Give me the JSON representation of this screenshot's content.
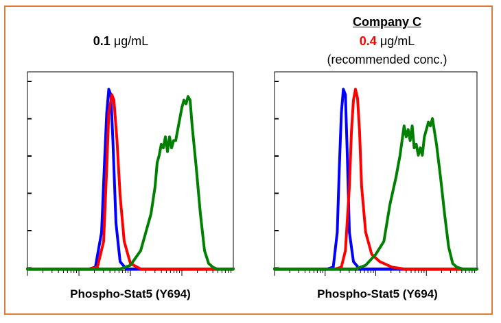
{
  "colors": {
    "frame": "#e07b39",
    "isotype": "#0000ff",
    "stained": "#ff0000",
    "positive": "#008000",
    "highlight": "#ff0000"
  },
  "panels": [
    {
      "conc_value": "0.1",
      "conc_unit": "μg/mL",
      "conc_value_color": "#000000",
      "company": "",
      "note": "",
      "xlabel": "Phospho-Stat5 (Y694)"
    },
    {
      "conc_value": "0.4",
      "conc_unit": "μg/mL",
      "conc_value_color": "#ff0000",
      "company": "Company C",
      "note": "(recommended conc.)",
      "xlabel": "Phospho-Stat5 (Y694)"
    }
  ],
  "chart_data": [
    {
      "type": "line",
      "xlabel": "Phospho-Stat5 (Y694)",
      "ylabel": "",
      "xscale": "log",
      "xlim": [
        0,
        1
      ],
      "ylim": [
        0,
        1
      ],
      "grid": false,
      "series": [
        {
          "color": "#0000ff",
          "x": [
            0,
            0.3,
            0.33,
            0.36,
            0.375,
            0.385,
            0.395,
            0.405,
            0.415,
            0.43,
            0.45,
            0.48,
            1
          ],
          "y": [
            0,
            0,
            0.01,
            0.2,
            0.6,
            0.85,
            0.98,
            0.95,
            0.7,
            0.25,
            0.04,
            0,
            0
          ]
        },
        {
          "color": "#ff0000",
          "x": [
            0,
            0.3,
            0.34,
            0.37,
            0.385,
            0.395,
            0.41,
            0.42,
            0.435,
            0.45,
            0.47,
            0.5,
            0.55,
            1
          ],
          "y": [
            0,
            0,
            0.01,
            0.15,
            0.55,
            0.85,
            0.95,
            0.92,
            0.7,
            0.4,
            0.15,
            0.03,
            0,
            0
          ]
        },
        {
          "color": "#008000",
          "x": [
            0,
            0.45,
            0.5,
            0.55,
            0.58,
            0.6,
            0.62,
            0.63,
            0.64,
            0.65,
            0.66,
            0.67,
            0.68,
            0.69,
            0.7,
            0.71,
            0.72,
            0.73,
            0.74,
            0.75,
            0.76,
            0.77,
            0.78,
            0.79,
            0.8,
            0.82,
            0.84,
            0.86,
            0.88,
            0.9,
            0.92,
            1
          ],
          "y": [
            0,
            0,
            0.02,
            0.1,
            0.22,
            0.3,
            0.45,
            0.58,
            0.62,
            0.68,
            0.66,
            0.72,
            0.64,
            0.72,
            0.66,
            0.7,
            0.7,
            0.76,
            0.82,
            0.88,
            0.92,
            0.9,
            0.94,
            0.92,
            0.78,
            0.55,
            0.3,
            0.1,
            0.03,
            0.01,
            0,
            0
          ]
        }
      ]
    },
    {
      "type": "line",
      "xlabel": "Phospho-Stat5 (Y694)",
      "ylabel": "",
      "xscale": "log",
      "xlim": [
        0,
        1
      ],
      "ylim": [
        0,
        1
      ],
      "grid": false,
      "series": [
        {
          "color": "#0000ff",
          "x": [
            0,
            0.26,
            0.29,
            0.31,
            0.32,
            0.33,
            0.34,
            0.35,
            0.36,
            0.37,
            0.39,
            0.42,
            1
          ],
          "y": [
            0,
            0,
            0.01,
            0.2,
            0.55,
            0.85,
            0.98,
            0.95,
            0.6,
            0.2,
            0.04,
            0,
            0
          ]
        },
        {
          "color": "#ff0000",
          "x": [
            0,
            0.3,
            0.33,
            0.35,
            0.37,
            0.38,
            0.39,
            0.4,
            0.41,
            0.42,
            0.43,
            0.45,
            0.48,
            0.52,
            0.58,
            0.64,
            1
          ],
          "y": [
            0,
            0,
            0.01,
            0.1,
            0.45,
            0.75,
            0.92,
            0.98,
            0.93,
            0.75,
            0.45,
            0.2,
            0.08,
            0.04,
            0.01,
            0,
            0
          ]
        },
        {
          "color": "#008000",
          "x": [
            0,
            0.4,
            0.45,
            0.5,
            0.54,
            0.57,
            0.6,
            0.62,
            0.64,
            0.65,
            0.66,
            0.67,
            0.68,
            0.69,
            0.7,
            0.71,
            0.72,
            0.73,
            0.74,
            0.75,
            0.76,
            0.77,
            0.78,
            0.8,
            0.82,
            0.84,
            0.86,
            0.88,
            0.9,
            0.93,
            1
          ],
          "y": [
            0,
            0,
            0.02,
            0.08,
            0.15,
            0.35,
            0.5,
            0.62,
            0.78,
            0.72,
            0.76,
            0.7,
            0.78,
            0.66,
            0.68,
            0.62,
            0.66,
            0.62,
            0.72,
            0.76,
            0.8,
            0.78,
            0.82,
            0.68,
            0.5,
            0.3,
            0.12,
            0.03,
            0.01,
            0,
            0
          ]
        }
      ]
    }
  ]
}
